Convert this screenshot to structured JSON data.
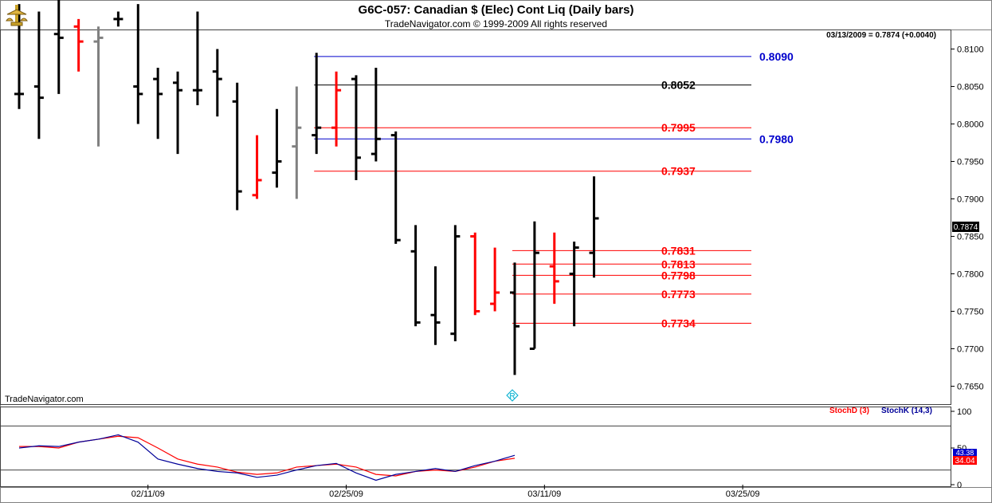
{
  "header": {
    "title": "G6C-057:  Canadian $ (Elec) Cont Liq  (Daily bars)",
    "subtitle": "TradeNavigator.com © 1999-2009 All rights reserved",
    "quote": "03/13/2009 = 0.7874 (+0.0040)",
    "watermark": "TradeNavigator.com",
    "last_price": "0.7874"
  },
  "colors": {
    "up_bar": "#000000",
    "down_bar": "#ff0000",
    "neutral_bar": "#808080",
    "green_bar": "#00c000",
    "level_red": "#ff0000",
    "level_blue": "#0000cc",
    "level_black": "#000000",
    "stoch_d": "#ff0000",
    "stoch_k": "#000099"
  },
  "chart_data": [
    {
      "type": "ohlc",
      "title": "Canadian $ (Elec) Cont Liq (Daily bars)",
      "ylim": [
        0.7625,
        0.8125
      ],
      "y_ticks": [
        "0.8100",
        "0.8050",
        "0.8000",
        "0.7950",
        "0.7900",
        "0.7850",
        "0.7800",
        "0.7750",
        "0.7700",
        "0.7650"
      ],
      "x_ticks": [
        {
          "label": "02/11/09",
          "index": 7
        },
        {
          "label": "02/25/09",
          "index": 17
        },
        {
          "label": "03/11/09",
          "index": 27
        },
        {
          "label": "03/25/09",
          "index": 37
        }
      ],
      "bars": [
        {
          "o": 0.804,
          "h": 0.816,
          "l": 0.802,
          "c": 0.804,
          "color": "black"
        },
        {
          "o": 0.805,
          "h": 0.815,
          "l": 0.798,
          "c": 0.8035,
          "color": "black"
        },
        {
          "o": 0.812,
          "h": 0.82,
          "l": 0.804,
          "c": 0.8115,
          "color": "black"
        },
        {
          "o": 0.813,
          "h": 0.814,
          "l": 0.807,
          "c": 0.811,
          "color": "red"
        },
        {
          "o": 0.811,
          "h": 0.813,
          "l": 0.797,
          "c": 0.8115,
          "color": "gray"
        },
        {
          "o": 0.814,
          "h": 0.815,
          "l": 0.813,
          "c": 0.814,
          "color": "black"
        },
        {
          "o": 0.805,
          "h": 0.816,
          "l": 0.8,
          "c": 0.804,
          "color": "black"
        },
        {
          "o": 0.806,
          "h": 0.8075,
          "l": 0.798,
          "c": 0.804,
          "color": "black"
        },
        {
          "o": 0.8055,
          "h": 0.807,
          "l": 0.796,
          "c": 0.8045,
          "color": "black"
        },
        {
          "o": 0.8045,
          "h": 0.815,
          "l": 0.8025,
          "c": 0.8045,
          "color": "black"
        },
        {
          "o": 0.807,
          "h": 0.81,
          "l": 0.801,
          "c": 0.806,
          "color": "black"
        },
        {
          "o": 0.803,
          "h": 0.8055,
          "l": 0.7885,
          "c": 0.791,
          "color": "black"
        },
        {
          "o": 0.7905,
          "h": 0.7985,
          "l": 0.79,
          "c": 0.7925,
          "color": "red"
        },
        {
          "o": 0.7935,
          "h": 0.802,
          "l": 0.7915,
          "c": 0.795,
          "color": "black"
        },
        {
          "o": 0.797,
          "h": 0.805,
          "l": 0.79,
          "c": 0.7995,
          "color": "gray"
        },
        {
          "o": 0.7985,
          "h": 0.8095,
          "l": 0.796,
          "c": 0.7995,
          "color": "black"
        },
        {
          "o": 0.7995,
          "h": 0.807,
          "l": 0.797,
          "c": 0.8045,
          "color": "red"
        },
        {
          "o": 0.806,
          "h": 0.8065,
          "l": 0.7925,
          "c": 0.7955,
          "color": "black"
        },
        {
          "o": 0.796,
          "h": 0.8075,
          "l": 0.795,
          "c": 0.798,
          "color": "black"
        },
        {
          "o": 0.7985,
          "h": 0.799,
          "l": 0.784,
          "c": 0.7845,
          "color": "black"
        },
        {
          "o": 0.783,
          "h": 0.7865,
          "l": 0.773,
          "c": 0.7735,
          "color": "black"
        },
        {
          "o": 0.7745,
          "h": 0.781,
          "l": 0.7705,
          "c": 0.7735,
          "color": "black"
        },
        {
          "o": 0.772,
          "h": 0.7865,
          "l": 0.771,
          "c": 0.785,
          "color": "black"
        },
        {
          "o": 0.785,
          "h": 0.7855,
          "l": 0.7745,
          "c": 0.775,
          "color": "red"
        },
        {
          "o": 0.776,
          "h": 0.7835,
          "l": 0.775,
          "c": 0.7775,
          "color": "red"
        },
        {
          "o": 0.7775,
          "h": 0.7815,
          "l": 0.7665,
          "c": 0.773,
          "color": "black"
        },
        {
          "o": 0.77,
          "h": 0.787,
          "l": 0.77,
          "c": 0.7828,
          "color": "black"
        },
        {
          "o": 0.781,
          "h": 0.7855,
          "l": 0.776,
          "c": 0.779,
          "color": "red"
        },
        {
          "o": 0.78,
          "h": 0.7843,
          "l": 0.773,
          "c": 0.7835,
          "color": "black"
        },
        {
          "o": 0.7828,
          "h": 0.793,
          "l": 0.7795,
          "c": 0.7874,
          "color": "black"
        }
      ],
      "levels": [
        {
          "label": "0.8090",
          "value": 0.809,
          "color": "blue",
          "from": 15
        },
        {
          "label": "0.8052",
          "value": 0.8052,
          "color": "black",
          "from": 15
        },
        {
          "label": "0.7995",
          "value": 0.7995,
          "color": "red",
          "from": 15
        },
        {
          "label": "0.7980",
          "value": 0.798,
          "color": "blue",
          "from": 15
        },
        {
          "label": "0.7937",
          "value": 0.7937,
          "color": "red",
          "from": 15
        },
        {
          "label": "0.7831",
          "value": 0.7831,
          "color": "red",
          "from": 25
        },
        {
          "label": "0.7813",
          "value": 0.7813,
          "color": "red",
          "from": 25
        },
        {
          "label": "0.7798",
          "value": 0.7798,
          "color": "red",
          "from": 25
        },
        {
          "label": "0.7773",
          "value": 0.7773,
          "color": "red",
          "from": 25
        },
        {
          "label": "0.7734",
          "value": 0.7734,
          "color": "red",
          "from": 25
        }
      ],
      "marker": {
        "symbol": "R",
        "index": 25
      }
    },
    {
      "type": "line",
      "title": "",
      "ylim": [
        0,
        100
      ],
      "y_ticks": [
        "100",
        "50",
        "0"
      ],
      "reference_lines": [
        80,
        20
      ],
      "legend": [
        {
          "name": "StochD (3)",
          "color": "red"
        },
        {
          "name": "StochK (14,3)",
          "color": "blue"
        }
      ],
      "last_values": {
        "k": "43.38",
        "d": "34.04"
      },
      "series": [
        {
          "name": "StochD (3)",
          "values": [
            52,
            52,
            50,
            58,
            62,
            66,
            64,
            50,
            35,
            28,
            24,
            17,
            14,
            16,
            24,
            26,
            28,
            24,
            14,
            12,
            18,
            20,
            18,
            24,
            32,
            36
          ]
        },
        {
          "name": "StochK (14,3)",
          "values": [
            50,
            53,
            52,
            58,
            62,
            68,
            58,
            35,
            28,
            22,
            18,
            16,
            10,
            13,
            20,
            26,
            29,
            16,
            6,
            14,
            18,
            22,
            18,
            26,
            32,
            40
          ]
        }
      ]
    }
  ]
}
